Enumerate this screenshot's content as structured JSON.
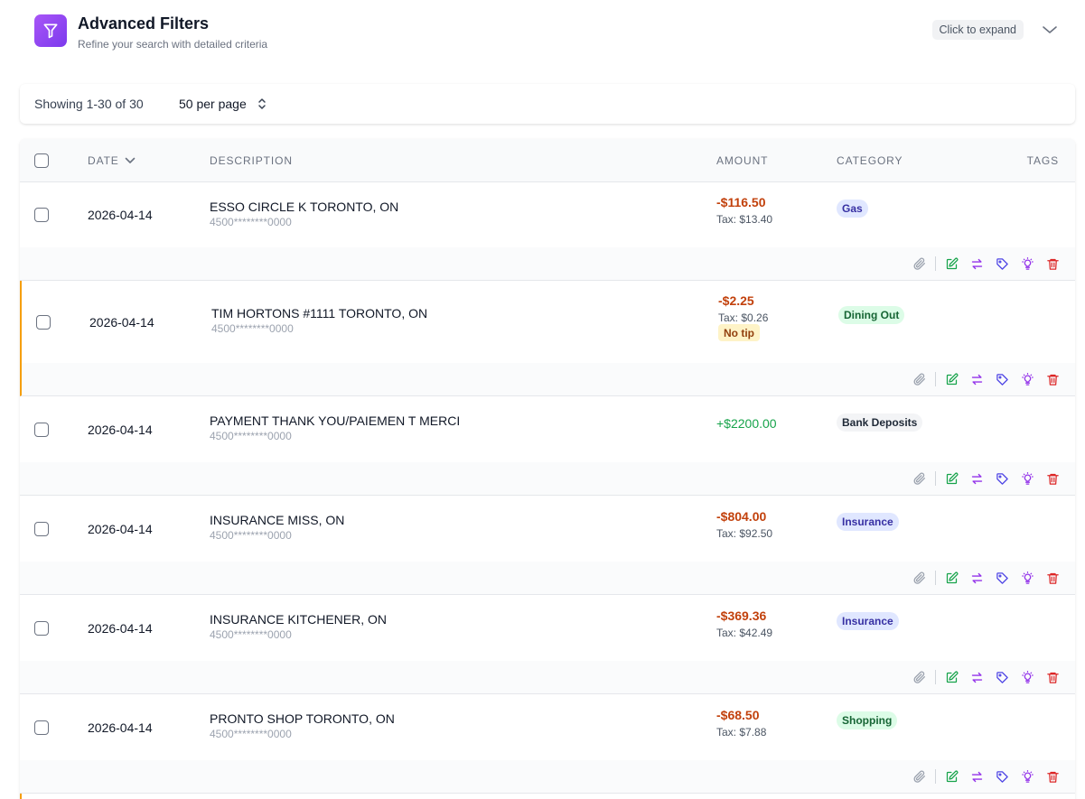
{
  "filters": {
    "title": "Advanced Filters",
    "subtitle": "Refine your search with detailed criteria",
    "expand_label": "Click to expand",
    "icon": "funnel-icon"
  },
  "pager": {
    "showing": "Showing 1-30 of 30",
    "per_page": "50 per page"
  },
  "table": {
    "headers": {
      "date": "DATE",
      "description": "DESCRIPTION",
      "amount": "AMOUNT",
      "category": "CATEGORY",
      "tags": "TAGS"
    },
    "rows": [
      {
        "date": "2026-04-14",
        "description": "ESSO CIRCLE K TORONTO, ON",
        "card": "4500********0000",
        "amount": "-$116.50",
        "tax": "Tax: $13.40",
        "note": "",
        "category": "Gas"
      },
      {
        "date": "2026-04-14",
        "description": "TIM HORTONS #1111 TORONTO, ON",
        "card": "4500********0000",
        "amount": "-$2.25",
        "tax": "Tax: $0.26",
        "note": "No tip",
        "category": "Dining Out"
      },
      {
        "date": "2026-04-14",
        "description": "PAYMENT THANK YOU/PAIEMEN T MERCI",
        "card": "4500********0000",
        "amount": "+$2200.00",
        "tax": "",
        "note": "",
        "category": "Bank Deposits"
      },
      {
        "date": "2026-04-14",
        "description": "INSURANCE MISS, ON",
        "card": "4500********0000",
        "amount": "-$804.00",
        "tax": "Tax: $92.50",
        "note": "",
        "category": "Insurance"
      },
      {
        "date": "2026-04-14",
        "description": "INSURANCE KITCHENER, ON",
        "card": "4500********0000",
        "amount": "-$369.36",
        "tax": "Tax: $42.49",
        "note": "",
        "category": "Insurance"
      },
      {
        "date": "2026-04-14",
        "description": "PRONTO SHOP TORONTO, ON",
        "card": "4500********0000",
        "amount": "-$68.50",
        "tax": "Tax: $7.88",
        "note": "",
        "category": "Shopping"
      }
    ]
  },
  "colors": {
    "accent": "#7c3aed",
    "negative": "#c2410c",
    "positive": "#16a34a",
    "highlight_border": "#f59e0b"
  },
  "row_action_icons": [
    "paperclip-icon",
    "edit-icon",
    "transfer-icon",
    "tag-icon",
    "lightbulb-icon",
    "trash-icon"
  ]
}
